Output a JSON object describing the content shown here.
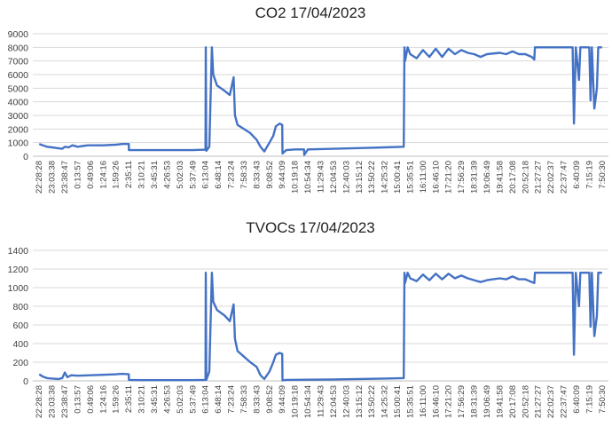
{
  "chart_data": [
    {
      "type": "line",
      "title": "CO2 17/04/2023",
      "xlabel": "",
      "ylabel": "",
      "ylim": [
        0,
        9000
      ],
      "yticks": [
        0,
        1000,
        2000,
        3000,
        4000,
        5000,
        6000,
        7000,
        8000,
        9000
      ],
      "grid": true,
      "legend": "none",
      "color": "#4472c4",
      "x_tick_labels": [
        "22:28:28",
        "23:03:38",
        "23:38:47",
        "0:13:57",
        "0:49:06",
        "1:24:16",
        "1:59:26",
        "2:35:11",
        "3:10:21",
        "3:45:31",
        "4:26:53",
        "5:02:03",
        "5:37:49",
        "6:13:04",
        "6:48:14",
        "7:23:24",
        "7:58:33",
        "8:33:43",
        "9:08:52",
        "9:44:09",
        "10:19:18",
        "10:54:34",
        "11:29:43",
        "12:04:53",
        "12:40:03",
        "13:15:12",
        "13:50:22",
        "14:25:32",
        "15:00:41",
        "15:35:51",
        "16:11:00",
        "16:46:10",
        "17:21:20",
        "17:56:29",
        "18:31:39",
        "19:06:49",
        "19:41:58",
        "20:17:08",
        "20:52:18",
        "21:27:27",
        "22:02:37",
        "22:37:47",
        "6:40:09",
        "7:15:19",
        "7:50:30"
      ],
      "series": [
        {
          "values": [
            [
              0,
              900
            ],
            [
              0.3,
              800
            ],
            [
              0.6,
              700
            ],
            [
              1,
              650
            ],
            [
              1.4,
              600
            ],
            [
              1.8,
              550
            ],
            [
              2,
              700
            ],
            [
              2.3,
              650
            ],
            [
              2.6,
              800
            ],
            [
              3,
              700
            ],
            [
              3.4,
              750
            ],
            [
              3.8,
              800
            ],
            [
              4,
              800
            ],
            [
              5,
              800
            ],
            [
              6,
              850
            ],
            [
              6.5,
              900
            ],
            [
              7,
              900
            ],
            [
              7.01,
              450
            ],
            [
              8,
              450
            ],
            [
              10,
              450
            ],
            [
              12,
              450
            ],
            [
              13,
              480
            ],
            [
              13.02,
              8000
            ],
            [
              13.06,
              400
            ],
            [
              13.3,
              700
            ],
            [
              13.5,
              8000
            ],
            [
              13.6,
              6000
            ],
            [
              13.9,
              5200
            ],
            [
              14.5,
              4800
            ],
            [
              14.9,
              4500
            ],
            [
              15.2,
              5800
            ],
            [
              15.3,
              3000
            ],
            [
              15.5,
              2300
            ],
            [
              16,
              2000
            ],
            [
              16.5,
              1700
            ],
            [
              17,
              1200
            ],
            [
              17.3,
              700
            ],
            [
              17.6,
              350
            ],
            [
              18,
              1000
            ],
            [
              18.3,
              1500
            ],
            [
              18.5,
              2200
            ],
            [
              18.8,
              2400
            ],
            [
              19,
              2300
            ],
            [
              19.02,
              200
            ],
            [
              19.3,
              450
            ],
            [
              20,
              500
            ],
            [
              20.7,
              500
            ],
            [
              20.72,
              100
            ],
            [
              21,
              500
            ],
            [
              23,
              550
            ],
            [
              25,
              600
            ],
            [
              27,
              650
            ],
            [
              28.5,
              700
            ],
            [
              28.55,
              8000
            ],
            [
              28.6,
              7000
            ],
            [
              28.8,
              8000
            ],
            [
              29,
              7500
            ],
            [
              29.5,
              7200
            ],
            [
              30,
              7800
            ],
            [
              30.5,
              7300
            ],
            [
              31,
              7900
            ],
            [
              31.5,
              7300
            ],
            [
              32,
              7900
            ],
            [
              32.5,
              7500
            ],
            [
              33,
              7800
            ],
            [
              33.5,
              7600
            ],
            [
              34,
              7500
            ],
            [
              34.5,
              7300
            ],
            [
              35,
              7500
            ],
            [
              36,
              7600
            ],
            [
              36.5,
              7500
            ],
            [
              37,
              7700
            ],
            [
              37.5,
              7500
            ],
            [
              38,
              7500
            ],
            [
              38.5,
              7300
            ],
            [
              38.7,
              7100
            ],
            [
              38.75,
              8000
            ],
            [
              40,
              8000
            ],
            [
              41.5,
              8000
            ],
            [
              41.7,
              8000
            ],
            [
              41.8,
              2400
            ],
            [
              41.95,
              8000
            ],
            [
              42.2,
              5600
            ],
            [
              42.3,
              8000
            ],
            [
              43,
              8000
            ],
            [
              43.1,
              4100
            ],
            [
              43.2,
              8000
            ],
            [
              43.4,
              3500
            ],
            [
              43.6,
              5000
            ],
            [
              43.7,
              8000
            ],
            [
              44,
              8000
            ]
          ]
        }
      ]
    },
    {
      "type": "line",
      "title": "TVOCs 17/04/2023",
      "xlabel": "",
      "ylabel": "",
      "ylim": [
        0,
        1400
      ],
      "yticks": [
        0,
        200,
        400,
        600,
        800,
        1000,
        1200,
        1400
      ],
      "grid": true,
      "legend": "none",
      "color": "#4472c4",
      "x_tick_labels": [
        "22:28:28",
        "23:03:38",
        "23:38:47",
        "0:13:57",
        "0:49:06",
        "1:24:16",
        "1:59:26",
        "2:35:11",
        "3:10:21",
        "3:45:31",
        "4:26:53",
        "5:02:03",
        "5:37:49",
        "6:13:04",
        "6:48:14",
        "7:23:24",
        "7:58:33",
        "8:33:43",
        "9:08:52",
        "9:44:09",
        "10:19:18",
        "10:54:34",
        "11:29:43",
        "12:04:53",
        "12:40:03",
        "13:15:12",
        "13:50:22",
        "14:25:32",
        "15:00:41",
        "15:35:51",
        "16:11:00",
        "16:46:10",
        "17:21:20",
        "17:56:29",
        "18:31:39",
        "19:06:49",
        "19:41:58",
        "20:17:08",
        "20:52:18",
        "21:27:27",
        "22:02:37",
        "22:37:47",
        "6:40:09",
        "7:15:19",
        "7:50:30"
      ],
      "series": [
        {
          "values": [
            [
              0,
              70
            ],
            [
              0.3,
              45
            ],
            [
              0.6,
              30
            ],
            [
              1,
              25
            ],
            [
              1.5,
              20
            ],
            [
              1.8,
              30
            ],
            [
              2,
              90
            ],
            [
              2.2,
              40
            ],
            [
              2.5,
              60
            ],
            [
              3,
              55
            ],
            [
              4,
              60
            ],
            [
              5,
              65
            ],
            [
              6,
              70
            ],
            [
              6.5,
              75
            ],
            [
              7,
              70
            ],
            [
              7.01,
              10
            ],
            [
              8,
              8
            ],
            [
              10,
              8
            ],
            [
              12,
              8
            ],
            [
              13,
              10
            ],
            [
              13.02,
              1160
            ],
            [
              13.06,
              10
            ],
            [
              13.3,
              100
            ],
            [
              13.5,
              1160
            ],
            [
              13.6,
              850
            ],
            [
              13.9,
              760
            ],
            [
              14.5,
              700
            ],
            [
              14.9,
              640
            ],
            [
              15.2,
              820
            ],
            [
              15.3,
              450
            ],
            [
              15.5,
              320
            ],
            [
              16,
              260
            ],
            [
              16.5,
              200
            ],
            [
              17,
              150
            ],
            [
              17.3,
              60
            ],
            [
              17.6,
              20
            ],
            [
              18,
              100
            ],
            [
              18.3,
              200
            ],
            [
              18.5,
              280
            ],
            [
              18.8,
              300
            ],
            [
              19,
              290
            ],
            [
              19.02,
              5
            ],
            [
              19.3,
              10
            ],
            [
              21,
              12
            ],
            [
              23,
              15
            ],
            [
              25,
              20
            ],
            [
              27,
              25
            ],
            [
              28.5,
              30
            ],
            [
              28.55,
              1160
            ],
            [
              28.6,
              1050
            ],
            [
              28.8,
              1160
            ],
            [
              29,
              1100
            ],
            [
              29.5,
              1070
            ],
            [
              30,
              1140
            ],
            [
              30.5,
              1080
            ],
            [
              31,
              1150
            ],
            [
              31.5,
              1090
            ],
            [
              32,
              1150
            ],
            [
              32.5,
              1100
            ],
            [
              33,
              1130
            ],
            [
              33.5,
              1100
            ],
            [
              34,
              1080
            ],
            [
              34.5,
              1060
            ],
            [
              35,
              1080
            ],
            [
              36,
              1100
            ],
            [
              36.5,
              1090
            ],
            [
              37,
              1120
            ],
            [
              37.5,
              1090
            ],
            [
              38,
              1090
            ],
            [
              38.5,
              1060
            ],
            [
              38.7,
              1050
            ],
            [
              38.75,
              1160
            ],
            [
              40,
              1160
            ],
            [
              41.5,
              1160
            ],
            [
              41.7,
              1160
            ],
            [
              41.8,
              280
            ],
            [
              41.95,
              1160
            ],
            [
              42.2,
              800
            ],
            [
              42.3,
              1160
            ],
            [
              43,
              1160
            ],
            [
              43.1,
              580
            ],
            [
              43.2,
              1160
            ],
            [
              43.4,
              480
            ],
            [
              43.6,
              700
            ],
            [
              43.7,
              1160
            ],
            [
              44,
              1160
            ]
          ]
        }
      ]
    }
  ]
}
